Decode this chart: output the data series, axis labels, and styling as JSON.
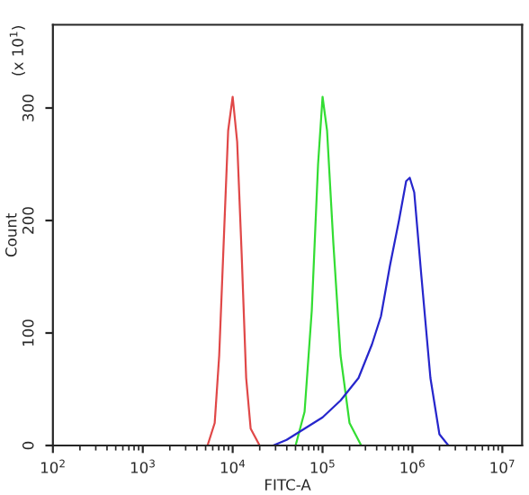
{
  "chart_data": {
    "type": "line",
    "xlabel": "FITC-A",
    "ylabel": "Count",
    "annotations": [
      "(x 10$^{1}$)"
    ],
    "log": "x",
    "grid": false,
    "legend": false,
    "marker": "none",
    "line_style": "solid",
    "xlim": [
      100,
      16600000
    ],
    "xticks": [
      {
        "value": 100,
        "label": "10$^{2}$"
      },
      {
        "value": 1000,
        "label": "10$^{3}$"
      },
      {
        "value": 10000,
        "label": "10$^{4}$"
      },
      {
        "value": 100000,
        "label": "10$^{5}$"
      },
      {
        "value": 1000000,
        "label": "10$^{6}$"
      },
      {
        "value": 10000000,
        "label": "10$^{7}$"
      }
    ],
    "ylim": [
      0,
      374
    ],
    "yticks": [
      0,
      100,
      200,
      300
    ],
    "series": [
      {
        "color": "#e04848",
        "x": [
          5250,
          6310,
          7080,
          7940,
          8910,
          10000,
          11220,
          12590,
          14130,
          15850,
          19950
        ],
        "values": [
          0,
          20,
          80,
          180,
          280,
          310,
          270,
          170,
          60,
          15,
          0
        ]
      },
      {
        "color": "#33dd33",
        "x": [
          50120,
          63100,
          75860,
          89130,
          100000,
          112200,
          131800,
          158500,
          199500,
          269200
        ],
        "values": [
          0,
          30,
          120,
          250,
          310,
          280,
          180,
          80,
          20,
          0
        ]
      },
      {
        "color": "#2626cc",
        "x": [
          28180,
          39810,
          63100,
          100000,
          158500,
          251200,
          354800,
          446700,
          562300,
          707900,
          851100,
          933300,
          1047000,
          1259000,
          1585000,
          1995000,
          2512000
        ],
        "values": [
          0,
          5,
          15,
          25,
          40,
          60,
          90,
          115,
          160,
          200,
          235,
          238,
          225,
          150,
          60,
          10,
          0
        ]
      }
    ]
  }
}
